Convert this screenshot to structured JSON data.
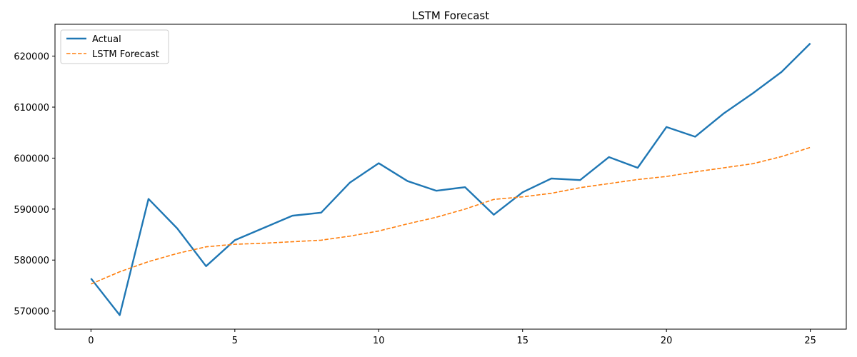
{
  "chart_data": {
    "type": "line",
    "title": "LSTM Forecast",
    "xlabel": "",
    "ylabel": "",
    "xlim": [
      -1.25,
      26.25
    ],
    "ylim": [
      566450,
      626250
    ],
    "x_ticks": [
      0,
      5,
      10,
      15,
      20,
      25
    ],
    "y_ticks": [
      570000,
      580000,
      590000,
      600000,
      610000,
      620000
    ],
    "x_tick_labels": [
      "0",
      "5",
      "10",
      "15",
      "20",
      "25"
    ],
    "y_tick_labels": [
      "570000",
      "580000",
      "590000",
      "600000",
      "610000",
      "620000"
    ],
    "grid": false,
    "legend_position": "top-left",
    "x": [
      0,
      1,
      2,
      3,
      4,
      5,
      6,
      7,
      8,
      9,
      10,
      11,
      12,
      13,
      14,
      15,
      16,
      17,
      18,
      19,
      20,
      21,
      22,
      23,
      24,
      25
    ],
    "series": [
      {
        "name": "Actual",
        "color": "#1f77b4",
        "style": "solid",
        "values": [
          576400,
          569200,
          592000,
          586200,
          578800,
          583900,
          586300,
          588700,
          589300,
          595200,
          599000,
          595500,
          593600,
          594300,
          588900,
          593300,
          596000,
          595700,
          600200,
          598100,
          606100,
          604200,
          608800,
          612700,
          616900,
          622500
        ]
      },
      {
        "name": "LSTM Forecast",
        "color": "#ff7f0e",
        "style": "dashed",
        "values": [
          575300,
          577700,
          579700,
          581300,
          582600,
          583100,
          583300,
          583600,
          583900,
          584700,
          585700,
          587100,
          588400,
          590000,
          591900,
          592400,
          593100,
          594200,
          595000,
          595800,
          596400,
          597300,
          598100,
          598900,
          600300,
          602100
        ]
      }
    ]
  }
}
